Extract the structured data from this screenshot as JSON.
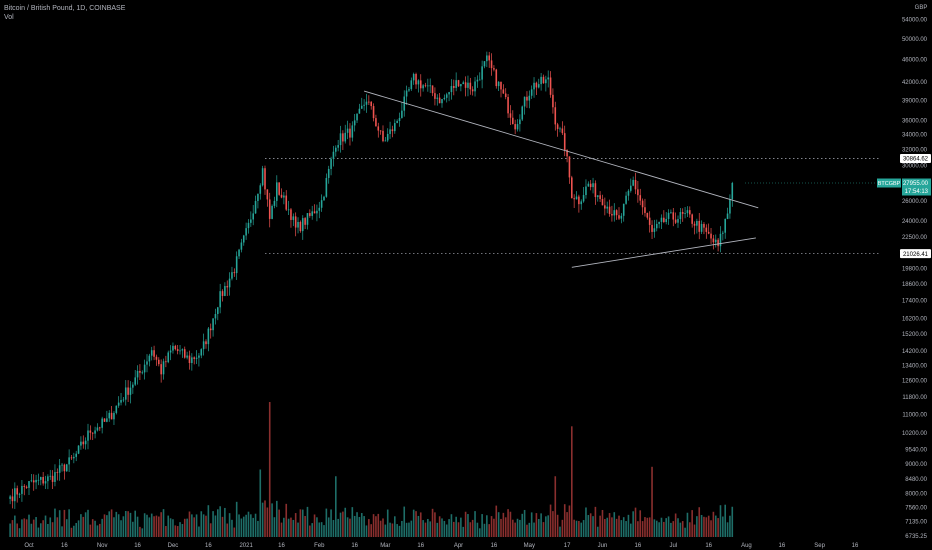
{
  "legend": {
    "symbol_line": "Bitcoin / British Pound, 1D, COINBASE",
    "volume_label": "Vol"
  },
  "currency": "GBP",
  "colors": {
    "background": "#000000",
    "up": "#26a69a",
    "down": "#ef5350",
    "volume_up": "#1e6e68",
    "volume_down": "#8a2f2e",
    "axis_text": "#b2b5be",
    "trendline": "#b2b5be",
    "price_tag": "#26a69a"
  },
  "chart_data": {
    "type": "candlestick",
    "y_scale": "log",
    "ylim": [
      6735.25,
      57300
    ],
    "y_ticks": [
      "6735.25",
      "7135.00",
      "7560.00",
      "8000.00",
      "8480.00",
      "9000.00",
      "9540.00",
      "10200.00",
      "11000.00",
      "11800.00",
      "12600.00",
      "13400.00",
      "14200.00",
      "15200.00",
      "16200.00",
      "17400.00",
      "18600.00",
      "19800.00",
      "21026.41",
      "22500.00",
      "24000.00",
      "26000.00",
      "27955.00",
      "28000.00",
      "30000.00",
      "30864.62",
      "32000.00",
      "34000.00",
      "36000.00",
      "39000.00",
      "42000.00",
      "46000.00",
      "50000.00",
      "54000.00"
    ],
    "x_ticks": [
      {
        "label": "Oct",
        "date": "2020-10-01"
      },
      {
        "label": "16",
        "date": "2020-10-16"
      },
      {
        "label": "Nov",
        "date": "2020-11-01"
      },
      {
        "label": "16",
        "date": "2020-11-16"
      },
      {
        "label": "Dec",
        "date": "2020-12-01"
      },
      {
        "label": "16",
        "date": "2020-12-16"
      },
      {
        "label": "2021",
        "date": "2021-01-01"
      },
      {
        "label": "16",
        "date": "2021-01-16"
      },
      {
        "label": "Feb",
        "date": "2021-02-01"
      },
      {
        "label": "16",
        "date": "2021-02-16"
      },
      {
        "label": "Mar",
        "date": "2021-03-01"
      },
      {
        "label": "16",
        "date": "2021-03-16"
      },
      {
        "label": "Apr",
        "date": "2021-04-01"
      },
      {
        "label": "16",
        "date": "2021-04-16"
      },
      {
        "label": "May",
        "date": "2021-05-01"
      },
      {
        "label": "17",
        "date": "2021-05-17"
      },
      {
        "label": "Jun",
        "date": "2021-06-01"
      },
      {
        "label": "16",
        "date": "2021-06-16"
      },
      {
        "label": "Jul",
        "date": "2021-07-01"
      },
      {
        "label": "16",
        "date": "2021-07-16"
      },
      {
        "label": "Aug",
        "date": "2021-08-01"
      },
      {
        "label": "16",
        "date": "2021-08-16"
      },
      {
        "label": "Sep",
        "date": "2021-09-01"
      },
      {
        "label": "16",
        "date": "2021-09-16"
      }
    ],
    "horizontal_lines": [
      {
        "value": 30864.62,
        "label": "30864.62"
      },
      {
        "value": 21026.41,
        "label": "21026.41"
      }
    ],
    "trendlines": [
      {
        "name": "resistance",
        "from": {
          "date": "2021-02-20",
          "price": 40500
        },
        "to": {
          "date": "2021-08-06",
          "price": 25300
        }
      },
      {
        "name": "support",
        "from": {
          "date": "2021-05-19",
          "price": 19900
        },
        "to": {
          "date": "2021-08-05",
          "price": 22400
        }
      }
    ],
    "price_tag": {
      "symbol": "BTCGBP",
      "price": "27955.00",
      "countdown": "17:54:13",
      "value": 27955
    },
    "anchors": [
      {
        "date": "2020-09-23",
        "price": 7900
      },
      {
        "date": "2020-10-01",
        "price": 8300
      },
      {
        "date": "2020-10-10",
        "price": 8500
      },
      {
        "date": "2020-10-20",
        "price": 9200
      },
      {
        "date": "2020-10-27",
        "price": 10300
      },
      {
        "date": "2020-11-03",
        "price": 10700
      },
      {
        "date": "2020-11-09",
        "price": 11700
      },
      {
        "date": "2020-11-17",
        "price": 13000
      },
      {
        "date": "2020-11-22",
        "price": 14300
      },
      {
        "date": "2020-11-26",
        "price": 13100
      },
      {
        "date": "2020-12-01",
        "price": 14400
      },
      {
        "date": "2020-12-08",
        "price": 13700
      },
      {
        "date": "2020-12-13",
        "price": 14100
      },
      {
        "date": "2020-12-16",
        "price": 15300
      },
      {
        "date": "2020-12-20",
        "price": 17300
      },
      {
        "date": "2020-12-27",
        "price": 19800
      },
      {
        "date": "2021-01-02",
        "price": 23500
      },
      {
        "date": "2021-01-08",
        "price": 29500
      },
      {
        "date": "2021-01-11",
        "price": 24200
      },
      {
        "date": "2021-01-14",
        "price": 27500
      },
      {
        "date": "2021-01-20",
        "price": 24700
      },
      {
        "date": "2021-01-22",
        "price": 23200
      },
      {
        "date": "2021-01-28",
        "price": 24400
      },
      {
        "date": "2021-02-02",
        "price": 26000
      },
      {
        "date": "2021-02-08",
        "price": 33000
      },
      {
        "date": "2021-02-15",
        "price": 34600
      },
      {
        "date": "2021-02-21",
        "price": 39300
      },
      {
        "date": "2021-02-24",
        "price": 36500
      },
      {
        "date": "2021-02-28",
        "price": 33000
      },
      {
        "date": "2021-03-05",
        "price": 35200
      },
      {
        "date": "2021-03-13",
        "price": 42500
      },
      {
        "date": "2021-03-18",
        "price": 41200
      },
      {
        "date": "2021-03-25",
        "price": 38900
      },
      {
        "date": "2021-04-01",
        "price": 42300
      },
      {
        "date": "2021-04-07",
        "price": 41000
      },
      {
        "date": "2021-04-13",
        "price": 45800
      },
      {
        "date": "2021-04-18",
        "price": 41500
      },
      {
        "date": "2021-04-25",
        "price": 35400
      },
      {
        "date": "2021-05-02",
        "price": 41400
      },
      {
        "date": "2021-05-09",
        "price": 42200
      },
      {
        "date": "2021-05-12",
        "price": 36200
      },
      {
        "date": "2021-05-16",
        "price": 32500
      },
      {
        "date": "2021-05-19",
        "price": 26800
      },
      {
        "date": "2021-05-22",
        "price": 26100
      },
      {
        "date": "2021-05-26",
        "price": 27800
      },
      {
        "date": "2021-06-01",
        "price": 26200
      },
      {
        "date": "2021-06-08",
        "price": 23900
      },
      {
        "date": "2021-06-14",
        "price": 28200
      },
      {
        "date": "2021-06-22",
        "price": 22800
      },
      {
        "date": "2021-06-28",
        "price": 24200
      },
      {
        "date": "2021-07-07",
        "price": 24500
      },
      {
        "date": "2021-07-15",
        "price": 22800
      },
      {
        "date": "2021-07-20",
        "price": 21600
      },
      {
        "date": "2021-07-24",
        "price": 24800
      },
      {
        "date": "2021-07-26",
        "price": 27955
      }
    ],
    "volume_spikes": [
      {
        "date": "2021-01-11",
        "scale": 1.0
      },
      {
        "date": "2021-01-07",
        "scale": 0.5
      },
      {
        "date": "2021-05-19",
        "scale": 0.82
      },
      {
        "date": "2021-05-12",
        "scale": 0.45
      },
      {
        "date": "2021-06-22",
        "scale": 0.52
      },
      {
        "date": "2021-02-08",
        "scale": 0.45
      }
    ]
  }
}
